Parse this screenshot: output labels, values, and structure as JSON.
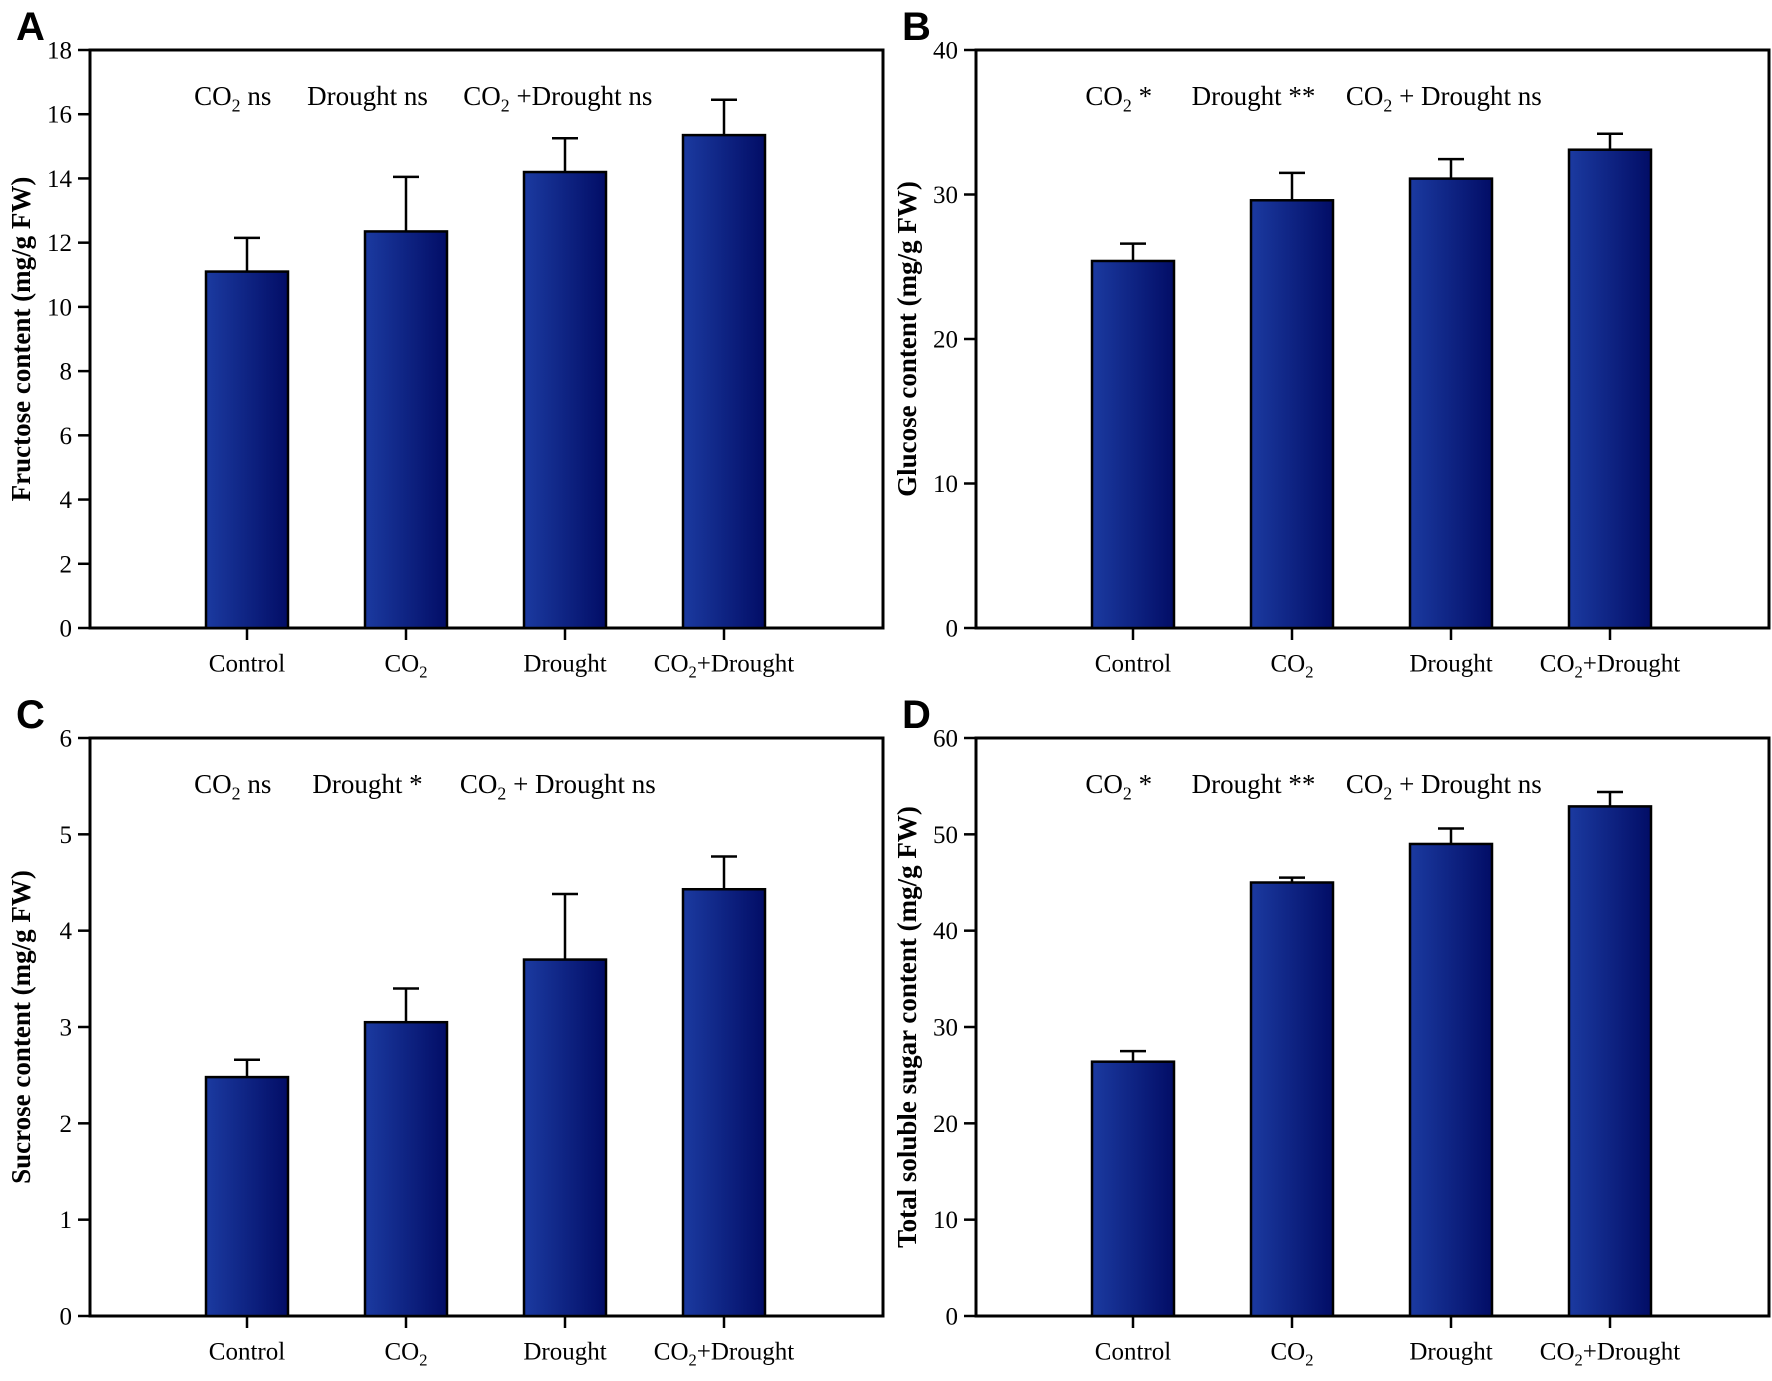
{
  "figure": {
    "background": "#ffffff",
    "panel_letters": [
      "A",
      "B",
      "C",
      "D"
    ]
  },
  "style": {
    "bar_gradient_left": "#1b3aa0",
    "bar_gradient_right": "#020d66",
    "bar_border": "#000000",
    "axis_color": "#000000",
    "text_color": "#000000"
  },
  "chart_data": [
    {
      "panel": "A",
      "type": "bar",
      "ylabel": "Fructose content (mg/g FW)",
      "xlabel": "",
      "ylim": [
        0,
        18
      ],
      "ytick_step": 2,
      "grid": false,
      "categories": [
        "Control",
        "CO2",
        "Drought",
        "CO2+Drought"
      ],
      "values": [
        11.1,
        12.35,
        14.2,
        15.35
      ],
      "errors": [
        1.05,
        1.7,
        1.05,
        1.1
      ],
      "annotations": [
        "CO2  ns",
        "Drought  ns",
        "CO2 +Drought  ns"
      ]
    },
    {
      "panel": "B",
      "type": "bar",
      "ylabel": "Glucose content (mg/g FW)",
      "xlabel": "",
      "ylim": [
        0,
        40
      ],
      "ytick_step": 10,
      "grid": false,
      "categories": [
        "Control",
        "CO2",
        "Drought",
        "CO2+Drought"
      ],
      "values": [
        25.4,
        29.6,
        31.1,
        33.1
      ],
      "errors": [
        1.2,
        1.9,
        1.35,
        1.1
      ],
      "annotations": [
        "CO2  *",
        "Drought  **",
        "CO2 +  Drought  ns"
      ]
    },
    {
      "panel": "C",
      "type": "bar",
      "ylabel": "Sucrose content (mg/g FW)",
      "xlabel": "",
      "ylim": [
        0,
        6
      ],
      "ytick_step": 1,
      "grid": false,
      "categories": [
        "Control",
        "CO2",
        "Drought",
        "CO2+Drought"
      ],
      "values": [
        2.48,
        3.05,
        3.7,
        4.43
      ],
      "errors": [
        0.18,
        0.35,
        0.68,
        0.34
      ],
      "annotations": [
        "CO2  ns",
        "Drought  *",
        "CO2 +  Drought  ns"
      ]
    },
    {
      "panel": "D",
      "type": "bar",
      "ylabel": "Total soluble sugar content (mg/g FW)",
      "xlabel": "",
      "ylim": [
        0,
        60
      ],
      "ytick_step": 10,
      "grid": false,
      "categories": [
        "Control",
        "CO2",
        "Drought",
        "CO2+Drought"
      ],
      "values": [
        26.4,
        45.0,
        49.0,
        52.9
      ],
      "errors": [
        1.1,
        0.5,
        1.6,
        1.5
      ],
      "annotations": [
        "CO2  *",
        "Drought  **",
        "CO2 +  Drought  ns"
      ]
    }
  ]
}
